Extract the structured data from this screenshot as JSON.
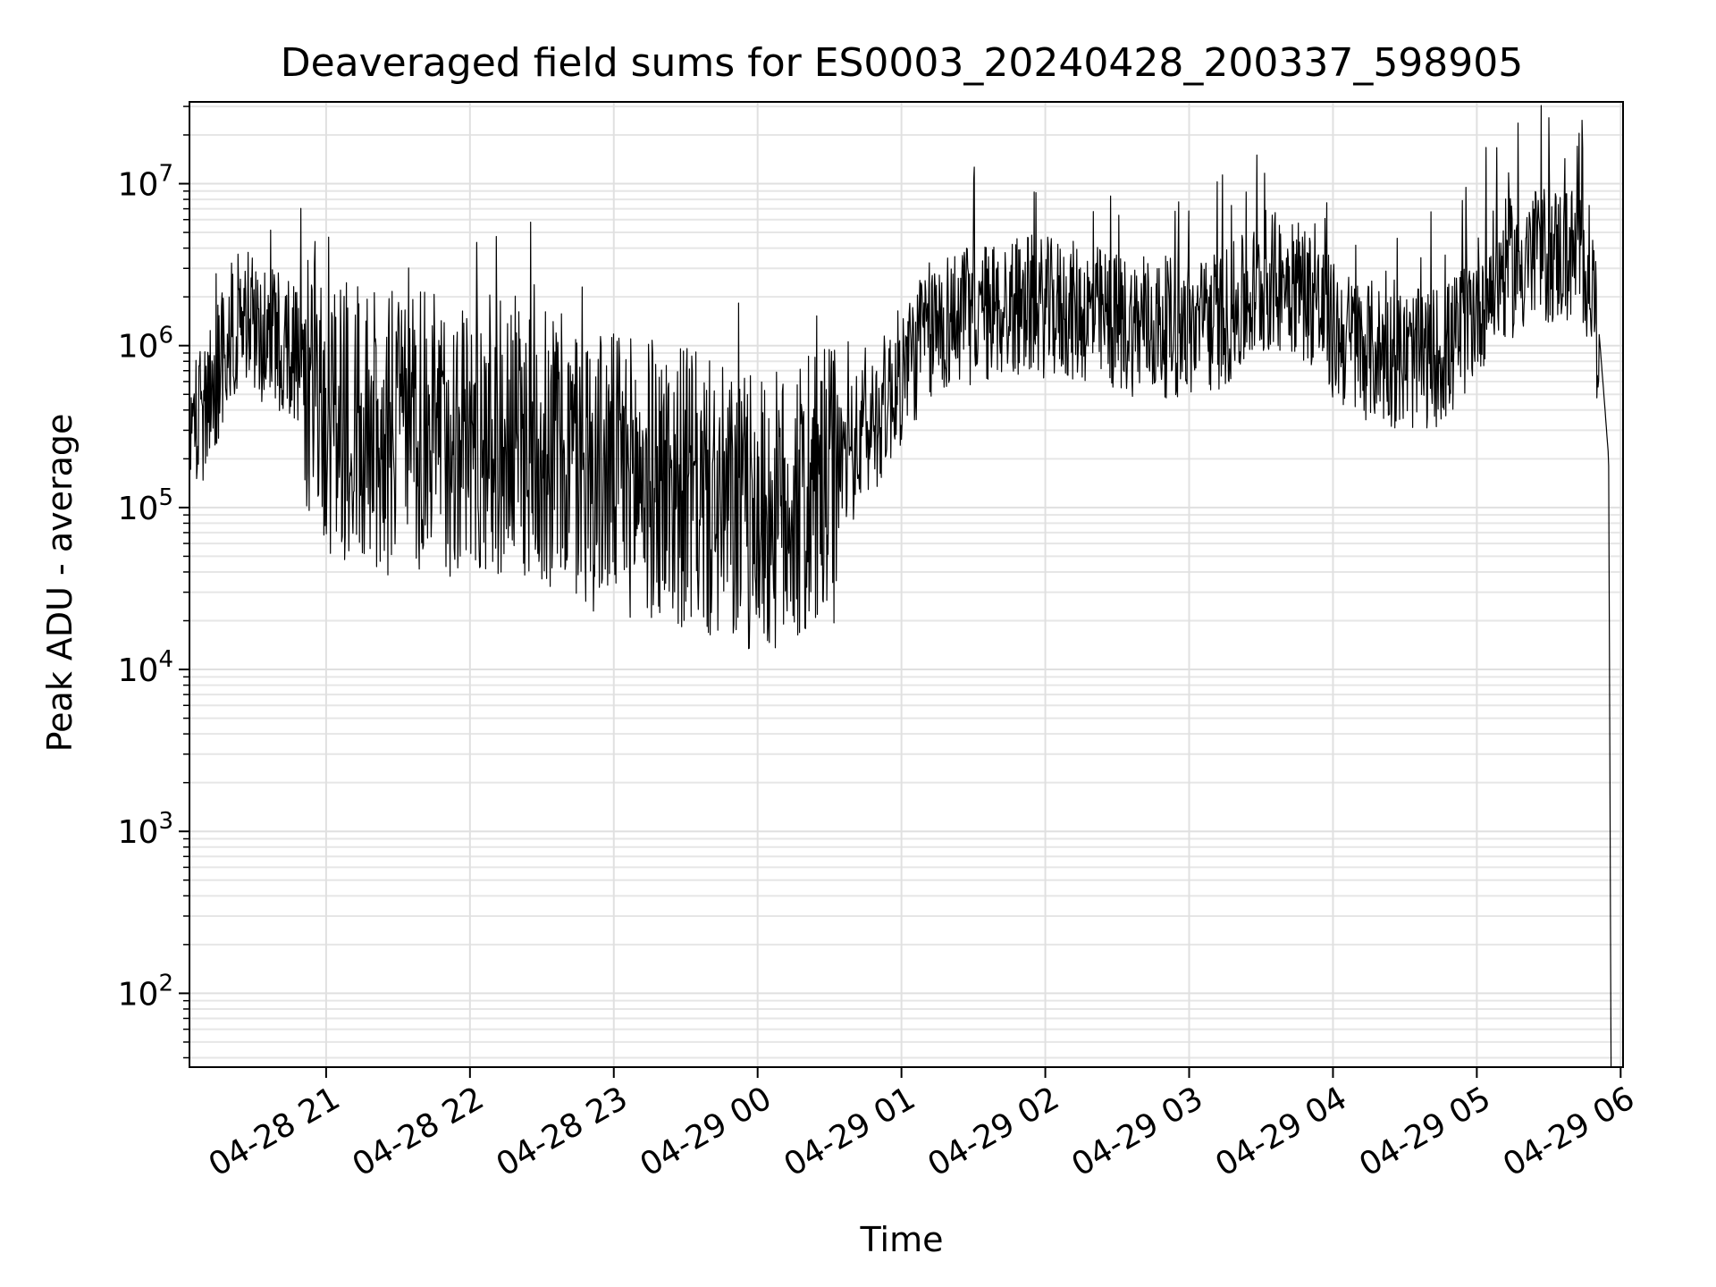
{
  "chart_data": {
    "type": "line",
    "title": "Deaveraged field sums for ES0003_20240428_200337_598905",
    "xlabel": "Time",
    "ylabel": "Peak ADU - average",
    "x_ticks": [
      "04-28 21",
      "04-28 22",
      "04-28 23",
      "04-29 00",
      "04-29 01",
      "04-29 02",
      "04-29 03",
      "04-29 04",
      "04-29 05",
      "04-29 06"
    ],
    "xlim": [
      "2024-04-28 20:03",
      "2024-04-29 06:01"
    ],
    "yscale": "log",
    "ylim": [
      35,
      32000000
    ],
    "y_ticks": [
      {
        "base": "10",
        "exp": "2",
        "value": 100
      },
      {
        "base": "10",
        "exp": "3",
        "value": 1000
      },
      {
        "base": "10",
        "exp": "4",
        "value": 10000
      },
      {
        "base": "10",
        "exp": "5",
        "value": 100000
      },
      {
        "base": "10",
        "exp": "6",
        "value": 1000000
      },
      {
        "base": "10",
        "exp": "7",
        "value": 10000000
      }
    ],
    "grid": true,
    "line_color": "#000000",
    "series": [
      {
        "x": [
          "2024-04-28 20:03",
          "2024-04-28 20:10",
          "2024-04-28 20:18",
          "2024-04-28 20:25",
          "2024-04-28 20:30",
          "2024-04-28 20:36",
          "2024-04-28 20:42",
          "2024-04-28 20:48",
          "2024-04-28 20:55",
          "2024-04-28 21:00",
          "2024-04-28 21:10",
          "2024-04-28 21:20",
          "2024-04-28 21:30",
          "2024-04-28 21:40",
          "2024-04-28 21:50",
          "2024-04-28 22:00",
          "2024-04-28 22:10",
          "2024-04-28 22:20",
          "2024-04-28 22:30",
          "2024-04-28 22:40",
          "2024-04-28 22:50",
          "2024-04-28 23:00",
          "2024-04-28 23:10",
          "2024-04-28 23:20",
          "2024-04-28 23:30",
          "2024-04-28 23:40",
          "2024-04-28 23:50",
          "2024-04-29 00:00",
          "2024-04-29 00:10",
          "2024-04-29 00:20",
          "2024-04-29 00:30",
          "2024-04-29 00:40",
          "2024-04-29 00:50",
          "2024-04-29 01:00",
          "2024-04-29 01:10",
          "2024-04-29 01:20",
          "2024-04-29 01:30",
          "2024-04-29 01:40",
          "2024-04-29 01:50",
          "2024-04-29 02:00",
          "2024-04-29 02:10",
          "2024-04-29 02:20",
          "2024-04-29 02:30",
          "2024-04-29 02:40",
          "2024-04-29 02:50",
          "2024-04-29 03:00",
          "2024-04-29 03:10",
          "2024-04-29 03:20",
          "2024-04-29 03:30",
          "2024-04-29 03:40",
          "2024-04-29 03:50",
          "2024-04-29 04:00",
          "2024-04-29 04:10",
          "2024-04-29 04:20",
          "2024-04-29 04:30",
          "2024-04-29 04:40",
          "2024-04-29 04:50",
          "2024-04-29 05:00",
          "2024-04-29 05:10",
          "2024-04-29 05:20",
          "2024-04-29 05:30",
          "2024-04-29 05:40",
          "2024-04-29 05:45",
          "2024-04-29 05:48",
          "2024-04-29 05:51",
          "2024-04-29 05:53",
          "2024-04-29 05:55",
          "2024-04-29 05:56"
        ],
        "y": [
          300000,
          500000,
          1200000,
          2000000,
          1600000,
          1400000,
          1300000,
          1100000,
          900000,
          600000,
          500000,
          450000,
          420000,
          430000,
          410000,
          420000,
          410000,
          400000,
          380000,
          300000,
          260000,
          250000,
          230000,
          220000,
          200000,
          160000,
          140000,
          130000,
          140000,
          150000,
          200000,
          280000,
          450000,
          800000,
          1400000,
          1800000,
          1900000,
          2000000,
          2200000,
          2100000,
          2000000,
          1900000,
          1700000,
          1600000,
          1600000,
          1500000,
          1700000,
          2000000,
          2800000,
          3200000,
          2600000,
          1500000,
          1200000,
          1100000,
          1000000,
          1000000,
          1200000,
          2200000,
          3500000,
          4000000,
          4500000,
          4500000,
          4000000,
          3000000,
          1200000,
          500000,
          200000,
          35
        ]
      }
    ]
  }
}
